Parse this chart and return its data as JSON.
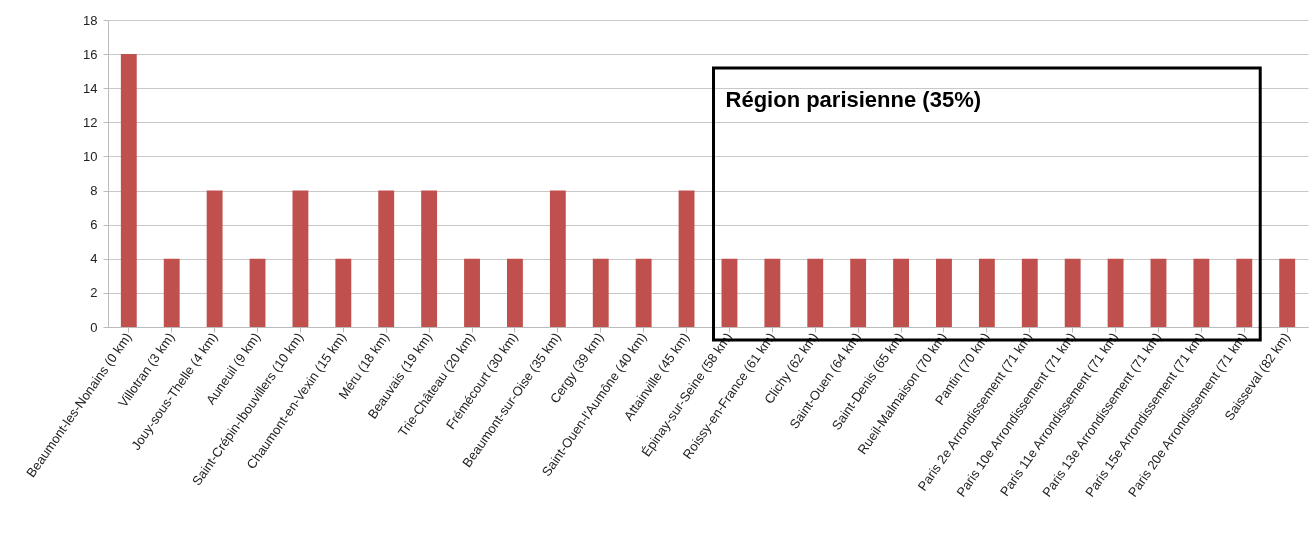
{
  "chart_data": {
    "type": "bar",
    "categories": [
      "Beaumont-les-Nonains (0 km)",
      "Villotran (3 km)",
      "Jouy-sous-Thelle (4 km)",
      "Auneuil (9 km)",
      "Saint-Crépin-Ibouvillers (10 km)",
      "Chaumont-en-Vexin (15 km)",
      "Méru (18 km)",
      "Beauvais (19 km)",
      "Trie-Château (20 km)",
      "Frémécourt (30 km)",
      "Beaumont-sur-Oise (35 km)",
      "Cergy (39 km)",
      "Saint-Ouen-l'Aumône (40 km)",
      "Attainville (45 km)",
      "Épinay-sur-Seine (58 km)",
      "Roissy-en-France (61 km)",
      "Clichy (62 km)",
      "Saint-Ouen (64 km)",
      "Saint-Denis (65 km)",
      "Rueil-Malmaison (70 km)",
      "Pantin (70 km)",
      "Paris 2e  Arrondissement (71 km)",
      "Paris 10e  Arrondissement (71 km)",
      "Paris 11e  Arrondissement (71 km)",
      "Paris 13e  Arrondissement (71 km)",
      "Paris 15e  Arrondissement (71 km)",
      "Paris 20e  Arrondissement (71 km)",
      "Saisseval (82 km)"
    ],
    "values": [
      16,
      4,
      8,
      4,
      8,
      4,
      8,
      8,
      4,
      4,
      8,
      4,
      4,
      8,
      4,
      4,
      4,
      4,
      4,
      4,
      4,
      4,
      4,
      4,
      4,
      4,
      4,
      4
    ],
    "color": "#c0504d",
    "ylim": [
      0,
      18
    ],
    "yticks": [
      0,
      2,
      4,
      6,
      8,
      10,
      12,
      14,
      16,
      18
    ],
    "grid": "y",
    "annotations": [
      "Région parisienne (35%)"
    ]
  }
}
